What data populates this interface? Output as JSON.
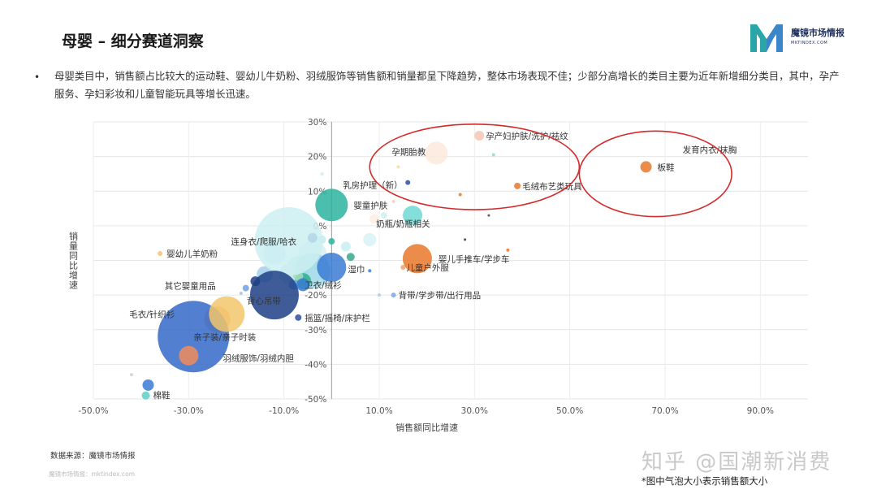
{
  "page": {
    "title": "母婴 – 细分赛道洞察",
    "brand_name": "魔镜市场情报",
    "brand_url": "MKTINDEX.COM",
    "summary": "母婴类目中，销售额占比较大的运动鞋、婴幼儿牛奶粉、羽绒服饰等销售额和销量都呈下降趋势，整体市场表现不佳；少部分高增长的类目主要为近年新增细分类目，其中，孕产服务、孕妇彩妆和儿童智能玩具等增长迅速。",
    "source": "数据来源：魔镜市场情报",
    "watermark_small": "魔镜市场情报：mktindex.com",
    "watermark_big": "知乎 @国潮新消费",
    "note": "*图中气泡大小表示销售额大小"
  },
  "chart_data": {
    "type": "scatter",
    "xlabel": "销售额同比增速",
    "ylabel": "销量同比增速",
    "xlim": [
      -50,
      100
    ],
    "ylim": [
      -50,
      30
    ],
    "x_ticks": [
      -50,
      -30,
      -10,
      10,
      30,
      50,
      70,
      90
    ],
    "y_ticks": [
      30,
      20,
      10,
      0,
      -10,
      -20,
      -30,
      -40,
      -50
    ],
    "x_tick_labels": [
      "-50.0%",
      "-30.0%",
      "-10.0%",
      "10.0%",
      "30.0%",
      "50.0%",
      "70.0%",
      "90.0%"
    ],
    "y_tick_labels": [
      "30%",
      "20%",
      "10%",
      "0%",
      "-10%",
      "-20%",
      "-30%",
      "-40%",
      "-50%"
    ],
    "grid": true,
    "highlights": [
      {
        "cx": 30,
        "cy": 17,
        "rx": 22,
        "ry": 13
      },
      {
        "cx": 68,
        "cy": 15,
        "rx": 16,
        "ry": 13
      }
    ],
    "points": [
      {
        "name": "孕产妇护肤/洗护/祛纹",
        "x": 31,
        "y": 26,
        "size": 6,
        "color": "#f5c6b5",
        "label_dx": 8,
        "label_dy": 0
      },
      {
        "name": "发育内衣/抹胸",
        "x": 80,
        "y": 22,
        "size": 0,
        "color": "#cccccc",
        "label_dx": -37,
        "label_dy": 0
      },
      {
        "name": "板鞋",
        "x": 66,
        "y": 17,
        "size": 7,
        "color": "#e8782a",
        "label_dx": 14,
        "label_dy": 0
      },
      {
        "name": "孕期胎教",
        "x": 22,
        "y": 21,
        "size": 14,
        "color": "#fde9dc",
        "label_dx": -55,
        "label_dy": -2
      },
      {
        "name": "毛绒布艺类玩具",
        "x": 39,
        "y": 11.5,
        "size": 4,
        "color": "#e8782a",
        "label_dx": 6,
        "label_dy": 0
      },
      {
        "name": "乳房护理（新）",
        "x": 16,
        "y": 12.5,
        "size": 3,
        "color": "#2e4e9e",
        "label_dx": -80,
        "label_dy": 3
      },
      {
        "name": "婴童护肤",
        "x": 0,
        "y": 6,
        "size": 20,
        "color": "#2bb3a0",
        "label_dx": 27,
        "label_dy": 0
      },
      {
        "name": "奶瓶/奶瓶相关",
        "x": 17,
        "y": 3,
        "size": 12,
        "color": "#6ed8d4",
        "label_dx": -45,
        "label_dy": 10
      },
      {
        "name": "连身衣/爬服/哈衣",
        "x": -9,
        "y": -4.5,
        "size": 42,
        "color": "#cdeff1",
        "label_dx": -71,
        "label_dy": 0
      },
      {
        "name": "婴幼儿羊奶粉",
        "x": -36,
        "y": -8,
        "size": 3,
        "color": "#f6c36e",
        "label_dx": 8,
        "label_dy": 0
      },
      {
        "name": "湿巾",
        "x": 0,
        "y": -12,
        "size": 18,
        "color": "#3a7bd5",
        "label_dx": 20,
        "label_dy": 2
      },
      {
        "name": "婴儿手推车/学步车",
        "x": 18,
        "y": -9.5,
        "size": 18,
        "color": "#e8782a",
        "label_dx": 26,
        "label_dy": 0
      },
      {
        "name": "儿童户外服",
        "x": 15,
        "y": -12,
        "size": 3,
        "color": "#f0a06a",
        "label_dx": 4,
        "label_dy": 0
      },
      {
        "name": "卫衣/绒衫",
        "x": -6,
        "y": -17,
        "size": 8,
        "color": "#3a7bd5",
        "label_dx": 2,
        "label_dy": 0
      },
      {
        "name": "其它婴童用品",
        "x": -18,
        "y": -18,
        "size": 4,
        "color": "#6e9fe6",
        "label_dx": -100,
        "label_dy": -3
      },
      {
        "name": "背带/学步带/出行用品",
        "x": 13,
        "y": -20,
        "size": 3,
        "color": "#7aa6e8",
        "label_dx": 6,
        "label_dy": 0
      },
      {
        "name": "背心吊带",
        "x": -12,
        "y": -20,
        "size": 30,
        "color": "#1f3f86",
        "label_dx": -34,
        "label_dy": 7
      },
      {
        "name": "摇篮/摇椅/床护栏",
        "x": -7,
        "y": -26.5,
        "size": 4,
        "color": "#2e4e9e",
        "label_dx": 8,
        "label_dy": 0
      },
      {
        "name": "毛衣/针织衫",
        "x": -22,
        "y": -25.5,
        "size": 22,
        "color": "#f2c76b",
        "label_dx": -120,
        "label_dy": 0
      },
      {
        "name": "亲子装/亲子时装",
        "x": -29,
        "y": -32,
        "size": 44,
        "color": "#3468c8",
        "label_dx": 0,
        "label_dy": 0
      },
      {
        "name": "羽绒服饰/羽绒内胆",
        "x": -30,
        "y": -37.5,
        "size": 12,
        "color": "#f28c5a",
        "label_dx": 42,
        "label_dy": 3
      },
      {
        "name": "棉鞋",
        "x": -38.5,
        "y": -46,
        "size": 7,
        "color": "#3a7bd5",
        "label_dx": 6,
        "label_dy": 12
      }
    ],
    "unlabeled_points": [
      {
        "x": -4,
        "y": -8.5,
        "size": 18,
        "color": "#d5f1f2"
      },
      {
        "x": -7,
        "y": -12,
        "size": 14,
        "color": "#b9e6e8"
      },
      {
        "x": -4,
        "y": -13,
        "size": 22,
        "color": "#9fd8e8"
      },
      {
        "x": -12,
        "y": -8,
        "size": 14,
        "color": "#c3e3f4"
      },
      {
        "x": -9,
        "y": -14,
        "size": 12,
        "color": "#bfe9e3"
      },
      {
        "x": -14,
        "y": -14,
        "size": 10,
        "color": "#a3cfe9"
      },
      {
        "x": -6,
        "y": -16,
        "size": 10,
        "color": "#2eb08c"
      },
      {
        "x": -7,
        "y": -14.5,
        "size": 6,
        "color": "#a5dcc1"
      },
      {
        "x": -16,
        "y": -16,
        "size": 6,
        "color": "#1f3f86"
      },
      {
        "x": -8,
        "y": -17,
        "size": 6,
        "color": "#6db0e5"
      },
      {
        "x": -4,
        "y": -3.5,
        "size": 6,
        "color": "#1f4fa5"
      },
      {
        "x": -2,
        "y": -4,
        "size": 5,
        "color": "#c7e9ec"
      },
      {
        "x": 0,
        "y": -4.5,
        "size": 4,
        "color": "#2bb3a0"
      },
      {
        "x": 3,
        "y": -6,
        "size": 6,
        "color": "#c8eef0"
      },
      {
        "x": 4,
        "y": -9,
        "size": 5,
        "color": "#37a88c"
      },
      {
        "x": 8,
        "y": -4,
        "size": 8,
        "color": "#d8f2f3"
      },
      {
        "x": 9,
        "y": 2,
        "size": 6,
        "color": "#fdeee3"
      },
      {
        "x": 11,
        "y": 3,
        "size": 4,
        "color": "#cfeef0"
      },
      {
        "x": 8,
        "y": -13,
        "size": 2,
        "color": "#3a7bd5"
      },
      {
        "x": 13,
        "y": 7,
        "size": 2,
        "color": "#f5d0b0"
      },
      {
        "x": 14,
        "y": 17,
        "size": 2,
        "color": "#f6d9a6"
      },
      {
        "x": 34,
        "y": 20.5,
        "size": 2,
        "color": "#7fe0d0"
      },
      {
        "x": 27,
        "y": 9,
        "size": 2,
        "color": "#e8782a"
      },
      {
        "x": 33,
        "y": 3,
        "size": 1.5,
        "color": "#444444"
      },
      {
        "x": 37,
        "y": -7,
        "size": 2,
        "color": "#e8782a"
      },
      {
        "x": 28,
        "y": -4,
        "size": 1.5,
        "color": "#333333"
      },
      {
        "x": 10,
        "y": -20,
        "size": 2,
        "color": "#b0c8ee"
      },
      {
        "x": -2,
        "y": 15,
        "size": 2,
        "color": "#d4efe6"
      },
      {
        "x": -42,
        "y": -43,
        "size": 2,
        "color": "#d0d0d0"
      },
      {
        "x": -39,
        "y": -49,
        "size": 5,
        "color": "#5ccfc6"
      },
      {
        "x": -24,
        "y": -27,
        "size": 16,
        "color": "#f4b183"
      },
      {
        "x": -19,
        "y": -19.5,
        "size": 2,
        "color": "#9dc3ea"
      },
      {
        "x": -6,
        "y": -11,
        "size": 3,
        "color": "#d0d0d0"
      }
    ]
  }
}
